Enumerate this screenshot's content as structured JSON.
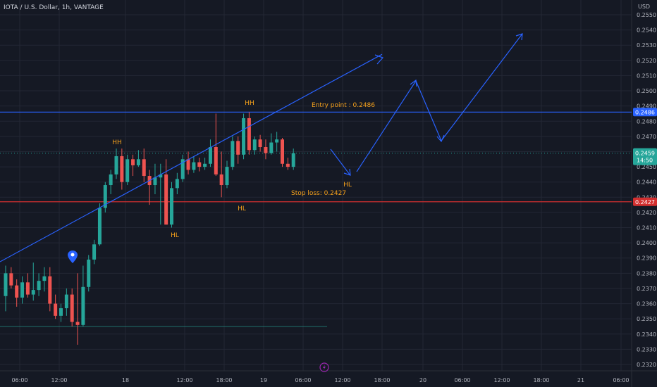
{
  "header": {
    "symbol": "IOTA / U.S. Dollar, 1h, VANTAGE"
  },
  "axis": {
    "currency": "USD"
  },
  "colors": {
    "background": "#151924",
    "grid": "#232734",
    "up": "#26a69a",
    "down": "#ef5350",
    "trendline": "#2962ff",
    "annotation": "#f7a21b",
    "entry_line": "#2962ff",
    "stop_line": "#d32f2f"
  },
  "chart_data": {
    "type": "candlestick",
    "ylim": [
      0.2315,
      0.2555
    ],
    "y_ticks": [
      "0.2550",
      "0.2540",
      "0.2530",
      "0.2520",
      "0.2510",
      "0.2500",
      "0.2490",
      "0.2480",
      "0.2470",
      "0.2460",
      "0.2450",
      "0.2440",
      "0.2430",
      "0.2420",
      "0.2410",
      "0.2400",
      "0.2390",
      "0.2380",
      "0.2370",
      "0.2360",
      "0.2350",
      "0.2340",
      "0.2330",
      "0.2320"
    ],
    "x_ticks": [
      "06:00",
      "12:00",
      "18",
      "12:00",
      "18:00",
      "19",
      "06:00",
      "12:00",
      "18:00",
      "20",
      "06:00",
      "12:00",
      "18:00",
      "21",
      "06:00"
    ],
    "candles": [
      {
        "o": 0.2365,
        "h": 0.2385,
        "l": 0.2355,
        "c": 0.238
      },
      {
        "o": 0.238,
        "h": 0.2384,
        "l": 0.237,
        "c": 0.2372
      },
      {
        "o": 0.2372,
        "h": 0.2376,
        "l": 0.2358,
        "c": 0.2364
      },
      {
        "o": 0.2364,
        "h": 0.2378,
        "l": 0.236,
        "c": 0.2374
      },
      {
        "o": 0.2374,
        "h": 0.238,
        "l": 0.2364,
        "c": 0.2366
      },
      {
        "o": 0.2366,
        "h": 0.2387,
        "l": 0.2362,
        "c": 0.2369
      },
      {
        "o": 0.2369,
        "h": 0.238,
        "l": 0.2365,
        "c": 0.2375
      },
      {
        "o": 0.2375,
        "h": 0.2384,
        "l": 0.2368,
        "c": 0.2378
      },
      {
        "o": 0.2378,
        "h": 0.2384,
        "l": 0.2355,
        "c": 0.236
      },
      {
        "o": 0.236,
        "h": 0.2366,
        "l": 0.235,
        "c": 0.2352
      },
      {
        "o": 0.2352,
        "h": 0.236,
        "l": 0.2348,
        "c": 0.2357
      },
      {
        "o": 0.2357,
        "h": 0.237,
        "l": 0.2352,
        "c": 0.2366
      },
      {
        "o": 0.2366,
        "h": 0.237,
        "l": 0.2345,
        "c": 0.2348
      },
      {
        "o": 0.2348,
        "h": 0.238,
        "l": 0.2333,
        "c": 0.2346
      },
      {
        "o": 0.2346,
        "h": 0.2385,
        "l": 0.2345,
        "c": 0.2371
      },
      {
        "o": 0.2371,
        "h": 0.2392,
        "l": 0.2368,
        "c": 0.2389
      },
      {
        "o": 0.2389,
        "h": 0.2402,
        "l": 0.2386,
        "c": 0.2399
      },
      {
        "o": 0.2399,
        "h": 0.2426,
        "l": 0.2398,
        "c": 0.2423
      },
      {
        "o": 0.2423,
        "h": 0.244,
        "l": 0.242,
        "c": 0.2438
      },
      {
        "o": 0.2438,
        "h": 0.2448,
        "l": 0.2432,
        "c": 0.2445
      },
      {
        "o": 0.2445,
        "h": 0.2462,
        "l": 0.2442,
        "c": 0.2457
      },
      {
        "o": 0.2457,
        "h": 0.2462,
        "l": 0.2435,
        "c": 0.244
      },
      {
        "o": 0.244,
        "h": 0.2458,
        "l": 0.2438,
        "c": 0.2455
      },
      {
        "o": 0.2455,
        "h": 0.2458,
        "l": 0.2444,
        "c": 0.2451
      },
      {
        "o": 0.2451,
        "h": 0.2461,
        "l": 0.245,
        "c": 0.2455
      },
      {
        "o": 0.2455,
        "h": 0.2462,
        "l": 0.244,
        "c": 0.2444
      },
      {
        "o": 0.2444,
        "h": 0.2448,
        "l": 0.2425,
        "c": 0.2438
      },
      {
        "o": 0.2438,
        "h": 0.2452,
        "l": 0.2432,
        "c": 0.2443
      },
      {
        "o": 0.2443,
        "h": 0.2452,
        "l": 0.2412,
        "c": 0.2445
      },
      {
        "o": 0.2445,
        "h": 0.2455,
        "l": 0.2412,
        "c": 0.2412
      },
      {
        "o": 0.2412,
        "h": 0.244,
        "l": 0.241,
        "c": 0.2436
      },
      {
        "o": 0.2436,
        "h": 0.2446,
        "l": 0.2432,
        "c": 0.2442
      },
      {
        "o": 0.2442,
        "h": 0.2458,
        "l": 0.244,
        "c": 0.2455
      },
      {
        "o": 0.2455,
        "h": 0.246,
        "l": 0.2445,
        "c": 0.2448
      },
      {
        "o": 0.2448,
        "h": 0.2457,
        "l": 0.2446,
        "c": 0.2453
      },
      {
        "o": 0.2453,
        "h": 0.2456,
        "l": 0.2447,
        "c": 0.245
      },
      {
        "o": 0.245,
        "h": 0.2456,
        "l": 0.2448,
        "c": 0.2452
      },
      {
        "o": 0.2452,
        "h": 0.2468,
        "l": 0.245,
        "c": 0.2463
      },
      {
        "o": 0.2463,
        "h": 0.2485,
        "l": 0.2444,
        "c": 0.2445
      },
      {
        "o": 0.2445,
        "h": 0.246,
        "l": 0.243,
        "c": 0.2438
      },
      {
        "o": 0.2438,
        "h": 0.2454,
        "l": 0.2436,
        "c": 0.245
      },
      {
        "o": 0.245,
        "h": 0.247,
        "l": 0.2448,
        "c": 0.2467
      },
      {
        "o": 0.2467,
        "h": 0.247,
        "l": 0.2452,
        "c": 0.2458
      },
      {
        "o": 0.2458,
        "h": 0.2485,
        "l": 0.2455,
        "c": 0.2482
      },
      {
        "o": 0.2482,
        "h": 0.2486,
        "l": 0.2458,
        "c": 0.2461
      },
      {
        "o": 0.2461,
        "h": 0.247,
        "l": 0.2458,
        "c": 0.2468
      },
      {
        "o": 0.2468,
        "h": 0.2471,
        "l": 0.246,
        "c": 0.2463
      },
      {
        "o": 0.2463,
        "h": 0.2468,
        "l": 0.2455,
        "c": 0.2459
      },
      {
        "o": 0.2459,
        "h": 0.2472,
        "l": 0.2458,
        "c": 0.2466
      },
      {
        "o": 0.2466,
        "h": 0.2473,
        "l": 0.246,
        "c": 0.2468
      },
      {
        "o": 0.2468,
        "h": 0.2469,
        "l": 0.245,
        "c": 0.2452
      },
      {
        "o": 0.2452,
        "h": 0.2456,
        "l": 0.2448,
        "c": 0.245
      },
      {
        "o": 0.245,
        "h": 0.2462,
        "l": 0.2448,
        "c": 0.2459
      }
    ],
    "entry": {
      "label": "Entry point : 0.2486",
      "value": 0.2486,
      "badge": "0.2486"
    },
    "stop": {
      "label": "Stop loss: 0.2427",
      "value": 0.2427,
      "badge": "0.2427"
    },
    "last_price": {
      "value": 0.2459,
      "badge_price": "0.2459",
      "badge_time": "14:50"
    },
    "annotations": [
      "HH",
      "HH",
      "HL",
      "HL",
      "HL"
    ]
  }
}
